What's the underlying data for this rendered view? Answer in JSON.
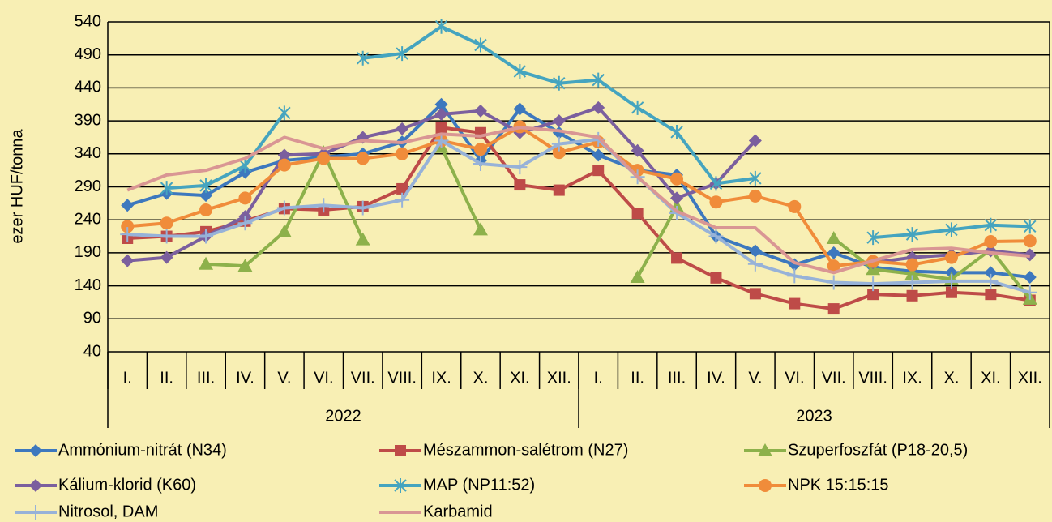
{
  "chart_data": {
    "type": "line",
    "y_label": "ezer HUF/tonna",
    "categories": [
      "I.",
      "II.",
      "III.",
      "IV.",
      "V.",
      "VI.",
      "VII.",
      "VIII.",
      "IX.",
      "X.",
      "XI.",
      "XII.",
      "I.",
      "II.",
      "III.",
      "IV.",
      "V.",
      "VI.",
      "VII.",
      "VIII.",
      "IX.",
      "X.",
      "XI.",
      "XII."
    ],
    "x_groups": [
      {
        "label": "2022",
        "count": 12
      },
      {
        "label": "2023",
        "count": 12
      }
    ],
    "ylim": [
      40,
      540
    ],
    "yticks": [
      40,
      90,
      140,
      190,
      240,
      290,
      340,
      390,
      440,
      490,
      540
    ],
    "grid": true,
    "series": [
      {
        "name": "Ammónium-nitrát (N34)",
        "color": "#3d78be",
        "marker": "diamond",
        "values": [
          262,
          280,
          277,
          312,
          330,
          335,
          340,
          358,
          415,
          330,
          408,
          372,
          338,
          315,
          308,
          215,
          193,
          172,
          190,
          168,
          162,
          160,
          160,
          153
        ]
      },
      {
        "name": "Mészammon-salétrom (N27)",
        "color": "#be4b48",
        "marker": "square",
        "values": [
          212,
          215,
          222,
          238,
          257,
          255,
          260,
          287,
          380,
          372,
          293,
          285,
          315,
          250,
          182,
          152,
          128,
          113,
          105,
          127,
          125,
          130,
          127,
          118
        ]
      },
      {
        "name": "Szuperfoszfát (P18-20,5)",
        "color": "#8db14b",
        "marker": "triangle",
        "values": [
          null,
          null,
          173,
          170,
          222,
          342,
          210,
          null,
          350,
          225,
          null,
          null,
          null,
          153,
          260,
          null,
          null,
          null,
          212,
          165,
          158,
          150,
          195,
          120
        ]
      },
      {
        "name": "Kálium-klorid (K60)",
        "color": "#7b5f9e",
        "marker": "diamond",
        "values": [
          178,
          183,
          215,
          245,
          338,
          340,
          365,
          378,
          400,
          405,
          372,
          390,
          410,
          345,
          273,
          295,
          360,
          null,
          null,
          175,
          183,
          187,
          193,
          187
        ]
      },
      {
        "name": "MAP (NP11:52)",
        "color": "#45a4bf",
        "marker": "star",
        "values": [
          null,
          288,
          292,
          322,
          402,
          null,
          485,
          492,
          533,
          505,
          465,
          447,
          452,
          410,
          373,
          295,
          303,
          null,
          null,
          213,
          218,
          225,
          232,
          230
        ]
      },
      {
        "name": "NPK 15:15:15",
        "color": "#f08c3a",
        "marker": "circle",
        "values": [
          230,
          235,
          255,
          273,
          323,
          333,
          333,
          340,
          360,
          347,
          381,
          342,
          358,
          315,
          302,
          267,
          276,
          260,
          170,
          177,
          172,
          183,
          207,
          208
        ]
      },
      {
        "name": "Nitrosol, DAM",
        "color": "#97b2d8",
        "marker": "plus",
        "values": [
          218,
          215,
          215,
          235,
          258,
          262,
          258,
          270,
          360,
          325,
          320,
          355,
          362,
          305,
          250,
          215,
          173,
          155,
          145,
          143,
          145,
          147,
          147,
          130
        ]
      },
      {
        "name": "Karbamid",
        "color": "#d99694",
        "marker": "none",
        "values": [
          285,
          308,
          315,
          333,
          365,
          348,
          360,
          357,
          370,
          367,
          380,
          375,
          365,
          305,
          253,
          228,
          228,
          175,
          160,
          178,
          195,
          197,
          190,
          185
        ]
      }
    ]
  }
}
